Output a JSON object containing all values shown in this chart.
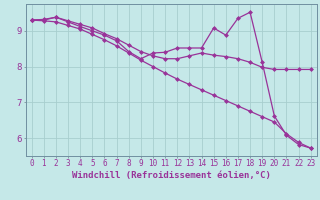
{
  "xlabel": "Windchill (Refroidissement éolien,°C)",
  "bg_color": "#c5e8e8",
  "grid_color": "#a8cece",
  "line_color": "#993399",
  "xlim": [
    -0.5,
    23.5
  ],
  "ylim": [
    5.5,
    9.75
  ],
  "xticks": [
    0,
    1,
    2,
    3,
    4,
    5,
    6,
    7,
    8,
    9,
    10,
    11,
    12,
    13,
    14,
    15,
    16,
    17,
    18,
    19,
    20,
    21,
    22,
    23
  ],
  "yticks": [
    6,
    7,
    8,
    9
  ],
  "line1_x": [
    0,
    1,
    2,
    3,
    4,
    5,
    6,
    7,
    8,
    9,
    10,
    11,
    12,
    13,
    14,
    15,
    16,
    17,
    18,
    19,
    20,
    21,
    22,
    23
  ],
  "line1_y": [
    9.3,
    9.32,
    9.38,
    9.28,
    9.18,
    9.08,
    8.92,
    8.78,
    8.6,
    8.42,
    8.3,
    8.22,
    8.22,
    8.3,
    8.38,
    8.32,
    8.28,
    8.22,
    8.12,
    7.98,
    7.92,
    7.92,
    7.92,
    7.92
  ],
  "line2_x": [
    0,
    1,
    2,
    3,
    4,
    5,
    6,
    7,
    8,
    9,
    10,
    11,
    12,
    13,
    14,
    15,
    16,
    17,
    18,
    19,
    20,
    21,
    22,
    23
  ],
  "line2_y": [
    9.3,
    9.3,
    9.38,
    9.25,
    9.12,
    9.0,
    8.88,
    8.72,
    8.42,
    8.22,
    8.38,
    8.4,
    8.52,
    8.52,
    8.52,
    9.08,
    8.88,
    9.35,
    9.52,
    8.12,
    6.62,
    6.08,
    5.82,
    5.72
  ],
  "line3_x": [
    0,
    1,
    2,
    3,
    4,
    5,
    6,
    7,
    8,
    9,
    10,
    11,
    12,
    13,
    14,
    15,
    16,
    17,
    18,
    19,
    20,
    21,
    22,
    23
  ],
  "line3_y": [
    9.3,
    9.28,
    9.25,
    9.15,
    9.05,
    8.9,
    8.75,
    8.58,
    8.38,
    8.18,
    8.0,
    7.82,
    7.65,
    7.5,
    7.35,
    7.2,
    7.05,
    6.9,
    6.75,
    6.6,
    6.45,
    6.12,
    5.88,
    5.72
  ],
  "marker": "D",
  "markersize": 2.5,
  "linewidth": 0.9,
  "xlabel_fontsize": 6.5,
  "tick_fontsize": 5.5
}
